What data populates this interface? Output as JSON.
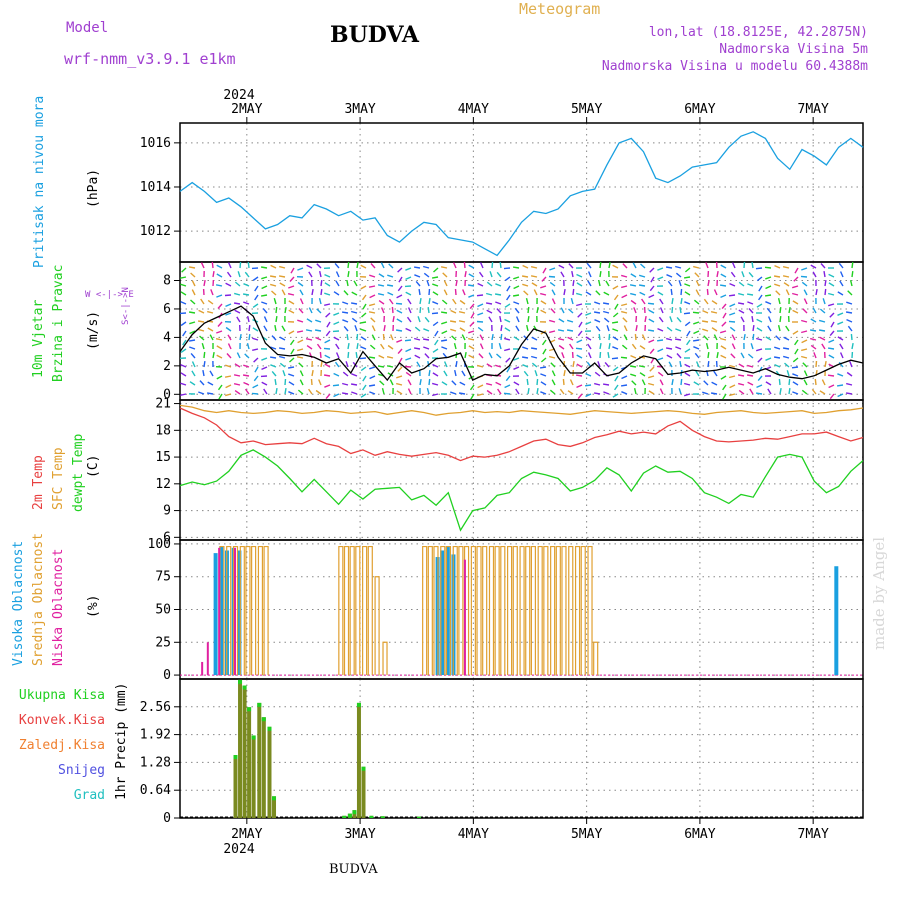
{
  "header": {
    "title": "BUDVA",
    "bottom_title": "BUDVA",
    "model_label": "Model",
    "model_name": "wrf-nmm_v3.9.1 e1km",
    "meteogram": "Meteogram",
    "lonlat": "lon,lat (18.8125E, 42.2875N)",
    "elevation": "Nadmorska Visina 5m",
    "elevation_model": "Nadmorska Visina u modelu 60.4388m",
    "watermark": "made by Angel"
  },
  "colors": {
    "pressure": "#1aa0e0",
    "temp2m": "#e84040",
    "sfc_temp": "#e0a030",
    "dewpoint": "#20d020",
    "high_cloud": "#1aa0e0",
    "mid_cloud": "#e0a030",
    "low_cloud": "#e020a0",
    "total_precip": "#20d020",
    "conv_precip": "#e84040",
    "frozen_precip": "#f08030",
    "snow": "#5050e0",
    "graupel": "#20c0c0",
    "wind_speed": "#000000",
    "gust": "#e84040"
  },
  "xaxis": {
    "top_year": "2024",
    "bottom_year": "2024",
    "days": [
      "2MAY",
      "3MAY",
      "4MAY",
      "5MAY",
      "6MAY",
      "7MAY"
    ],
    "day_positions": [
      1.5,
      2.5,
      3.5,
      4.5,
      5.5,
      6.5
    ],
    "range": [
      0.91,
      6.94
    ]
  },
  "panels": {
    "pressure": {
      "label": "Pritisak na nivou mora",
      "unit": "(hPa)"
    },
    "wind": {
      "label1": "10m Vjetar",
      "label2": "Brzina i Pravac",
      "unit": "(m/s)",
      "rose": "W <-|-> E",
      "rose2": "S<-|->N"
    },
    "temp": {
      "label1": "2m Temp",
      "label2": "SFC Temp",
      "label3": "dewpt Temp",
      "unit": "(C)"
    },
    "cloud": {
      "label1": "Visoka Oblacnost",
      "label2": "Srednja Oblacnost",
      "label3": "Niska Oblacnost",
      "unit": "(%)"
    },
    "precip": {
      "label1": "Ukupna Kisa",
      "label2": "Konvek.Kisa",
      "label3": "Zaledj.Kisa",
      "label4": "Snijeg",
      "label5": "Grad",
      "unit": "1hr Precip (mm)"
    }
  },
  "chart_data": [
    {
      "type": "line",
      "panel": "pressure",
      "ylim": [
        1010.6,
        1016.9
      ],
      "yticks": [
        "1012",
        "1014",
        "1016"
      ],
      "ytick_values": [
        1012,
        1014,
        1016
      ],
      "series": [
        {
          "values": [
            1013.8,
            1014.2,
            1013.8,
            1013.3,
            1013.5,
            1013.1,
            1012.6,
            1012.1,
            1012.3,
            1012.7,
            1012.6,
            1013.2,
            1013.0,
            1012.7,
            1012.9,
            1012.5,
            1012.6,
            1011.8,
            1011.5,
            1012.0,
            1012.4,
            1012.3,
            1011.7,
            1011.6,
            1011.5,
            1011.2,
            1010.9,
            1011.6,
            1012.4,
            1012.9,
            1012.8,
            1013.0,
            1013.6,
            1013.8,
            1013.9,
            1015.0,
            1016.0,
            1016.2,
            1015.6,
            1014.4,
            1014.2,
            1014.5,
            1014.9,
            1015.0,
            1015.1,
            1015.8,
            1016.3,
            1016.5,
            1016.2,
            1015.3,
            1014.8,
            1015.7,
            1015.4,
            1015.0,
            1015.8,
            1016.2,
            1015.8
          ]
        }
      ]
    },
    {
      "type": "line",
      "panel": "wind",
      "ylim": [
        -0.4,
        9.3
      ],
      "yticks": [
        "0",
        "2",
        "4",
        "6",
        "8"
      ],
      "ytick_values": [
        0,
        2,
        4,
        6,
        8
      ],
      "series": [
        {
          "name": "speed",
          "values": [
            3.0,
            4.2,
            5.0,
            5.4,
            5.8,
            6.2,
            5.5,
            3.6,
            2.8,
            2.7,
            2.8,
            2.6,
            2.2,
            2.5,
            1.5,
            3.0,
            2.0,
            1.0,
            2.2,
            1.5,
            1.8,
            2.5,
            2.6,
            2.9,
            1.0,
            1.4,
            1.3,
            2.0,
            3.5,
            4.6,
            4.3,
            2.6,
            1.5,
            1.5,
            2.2,
            1.3,
            1.5,
            2.2,
            2.7,
            2.5,
            1.4,
            1.5,
            1.7,
            1.6,
            1.7,
            1.9,
            1.7,
            1.5,
            1.8,
            1.4,
            1.2,
            1.1,
            1.3,
            1.7,
            2.1,
            2.4,
            2.2
          ]
        }
      ]
    },
    {
      "type": "line",
      "panel": "temp",
      "ylim": [
        5.7,
        21.4
      ],
      "yticks": [
        "6",
        "9",
        "12",
        "15",
        "18",
        "21"
      ],
      "ytick_values": [
        6,
        9,
        12,
        15,
        18,
        21
      ],
      "series": [
        {
          "name": "2m Temp",
          "values": [
            20.5,
            19.9,
            19.4,
            18.6,
            17.3,
            16.6,
            16.8,
            16.4,
            16.5,
            16.6,
            16.5,
            17.1,
            16.5,
            16.2,
            15.4,
            15.8,
            15.2,
            15.6,
            15.3,
            15.1,
            15.3,
            15.5,
            15.2,
            14.6,
            15.1,
            15.0,
            15.2,
            15.6,
            16.2,
            16.8,
            17.0,
            16.4,
            16.2,
            16.6,
            17.2,
            17.5,
            17.9,
            17.6,
            17.8,
            17.6,
            18.5,
            19.0,
            18.0,
            17.3,
            16.8,
            16.7,
            16.8,
            16.9,
            17.1,
            17.0,
            17.3,
            17.6,
            17.6,
            17.8,
            17.3,
            16.8,
            17.2
          ]
        },
        {
          "name": "SFC Temp",
          "values": [
            20.8,
            20.6,
            20.2,
            20.0,
            20.2,
            20.0,
            19.9,
            20.0,
            20.2,
            20.1,
            19.9,
            20.0,
            20.2,
            20.1,
            19.9,
            20.0,
            20.1,
            19.8,
            20.0,
            20.2,
            20.0,
            19.7,
            19.9,
            20.0,
            20.2,
            20.0,
            20.1,
            20.0,
            20.2,
            20.1,
            20.0,
            19.9,
            19.8,
            20.0,
            20.2,
            20.1,
            20.0,
            19.9,
            20.0,
            20.1,
            20.2,
            20.1,
            19.9,
            19.8,
            20.0,
            20.1,
            20.2,
            20.0,
            19.9,
            20.0,
            20.1,
            20.2,
            19.9,
            20.0,
            20.2,
            20.3,
            20.5
          ]
        },
        {
          "name": "dewpt Temp",
          "values": [
            11.8,
            12.2,
            11.9,
            12.3,
            13.4,
            15.2,
            15.8,
            15.0,
            14.0,
            12.6,
            11.1,
            12.5,
            11.1,
            9.7,
            11.3,
            10.3,
            11.4,
            11.5,
            11.6,
            10.2,
            10.7,
            9.6,
            11.0,
            6.8,
            9.0,
            9.3,
            10.7,
            11.0,
            12.6,
            13.3,
            13.0,
            12.6,
            11.2,
            11.6,
            12.4,
            13.8,
            13.0,
            11.2,
            13.2,
            14.0,
            13.3,
            13.4,
            12.6,
            11.0,
            10.5,
            9.8,
            10.8,
            10.5,
            12.8,
            15.0,
            15.3,
            15.0,
            12.3,
            11.0,
            11.7,
            13.4,
            14.6
          ]
        }
      ]
    },
    {
      "type": "bar",
      "panel": "cloud",
      "ylim": [
        -3,
        103
      ],
      "yticks": [
        "0",
        "25",
        "50",
        "75",
        "100"
      ],
      "ytick_values": [
        0,
        25,
        50,
        75,
        100
      ],
      "series": [
        {
          "name": "Visoka Oblacnost",
          "bars": [
            [
              1.22,
              93
            ],
            [
              1.27,
              98
            ],
            [
              1.32,
              95
            ],
            [
              1.38,
              97
            ],
            [
              1.43,
              95
            ],
            [
              3.18,
              90
            ],
            [
              3.22,
              95
            ],
            [
              3.27,
              98
            ],
            [
              3.32,
              92
            ],
            [
              6.7,
              83
            ]
          ]
        },
        {
          "name": "Srednja Oblacnost",
          "bars": [
            [
              1.28,
              98
            ],
            [
              1.34,
              98
            ],
            [
              1.4,
              98
            ],
            [
              1.46,
              98
            ],
            [
              1.51,
              98
            ],
            [
              1.56,
              98
            ],
            [
              1.62,
              98
            ],
            [
              1.67,
              98
            ],
            [
              2.33,
              98
            ],
            [
              2.38,
              98
            ],
            [
              2.43,
              98
            ],
            [
              2.48,
              98
            ],
            [
              2.54,
              98
            ],
            [
              2.59,
              98
            ],
            [
              2.65,
              75
            ],
            [
              2.72,
              25
            ],
            [
              3.07,
              98
            ],
            [
              3.12,
              98
            ],
            [
              3.17,
              98
            ],
            [
              3.23,
              98
            ],
            [
              3.28,
              98
            ],
            [
              3.34,
              98
            ],
            [
              3.39,
              98
            ],
            [
              3.44,
              98
            ],
            [
              3.5,
              98
            ],
            [
              3.55,
              98
            ],
            [
              3.6,
              98
            ],
            [
              3.66,
              98
            ],
            [
              3.71,
              98
            ],
            [
              3.76,
              98
            ],
            [
              3.82,
              98
            ],
            [
              3.87,
              98
            ],
            [
              3.93,
              98
            ],
            [
              3.98,
              98
            ],
            [
              4.03,
              98
            ],
            [
              4.09,
              98
            ],
            [
              4.14,
              98
            ],
            [
              4.2,
              98
            ],
            [
              4.25,
              98
            ],
            [
              4.3,
              98
            ],
            [
              4.36,
              98
            ],
            [
              4.42,
              98
            ],
            [
              4.47,
              98
            ],
            [
              4.53,
              98
            ],
            [
              4.58,
              25
            ]
          ]
        },
        {
          "name": "Niska Oblacnost",
          "bars": [
            [
              1.11,
              10
            ],
            [
              1.16,
              25
            ],
            [
              1.26,
              97
            ],
            [
              1.4,
              97
            ],
            [
              3.43,
              88
            ]
          ]
        }
      ]
    },
    {
      "type": "bar",
      "panel": "precip",
      "ylim": [
        0,
        3.2
      ],
      "yticks": [
        "0",
        "0.64",
        "1.28",
        "1.92",
        "2.56"
      ],
      "ytick_values": [
        0,
        0.64,
        1.28,
        1.92,
        2.56
      ],
      "series": [
        {
          "name": "Ukupna Kisa",
          "bars": [
            [
              1.4,
              1.45
            ],
            [
              1.44,
              3.18
            ],
            [
              1.48,
              3.05
            ],
            [
              1.52,
              2.55
            ],
            [
              1.56,
              1.9
            ],
            [
              1.61,
              2.65
            ],
            [
              1.65,
              2.32
            ],
            [
              1.7,
              2.1
            ],
            [
              1.74,
              0.5
            ],
            [
              2.36,
              0.05
            ],
            [
              2.41,
              0.1
            ],
            [
              2.45,
              0.18
            ],
            [
              2.49,
              2.65
            ],
            [
              2.53,
              1.18
            ],
            [
              2.6,
              0.05
            ],
            [
              2.7,
              0.04
            ],
            [
              3.02,
              0.03
            ]
          ]
        },
        {
          "name": "Konvek.Kisa",
          "bars": []
        },
        {
          "name": "Zaledj.Kisa",
          "bars": []
        },
        {
          "name": "Snijeg",
          "bars": []
        },
        {
          "name": "Grad",
          "bars": []
        }
      ]
    }
  ]
}
